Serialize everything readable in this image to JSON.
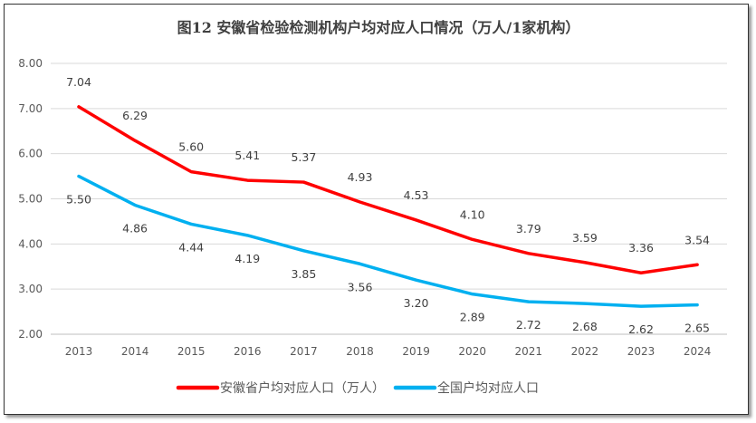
{
  "chart_data": {
    "type": "line",
    "title": "图12 安徽省检验检测机构户均对应人口情况（万人/1家机构）",
    "categories": [
      "2013",
      "2014",
      "2015",
      "2016",
      "2017",
      "2018",
      "2019",
      "2020",
      "2021",
      "2022",
      "2023",
      "2024"
    ],
    "ylim": [
      2.0,
      8.0
    ],
    "yticks": [
      "2.00",
      "3.00",
      "4.00",
      "5.00",
      "6.00",
      "7.00",
      "8.00"
    ],
    "grid": true,
    "legend_position": "bottom",
    "series": [
      {
        "name": "安徽省户均对应人口（万人）",
        "color": "#ff0000",
        "values": [
          7.04,
          6.29,
          5.6,
          5.41,
          5.37,
          4.93,
          4.53,
          4.1,
          3.79,
          3.59,
          3.36,
          3.54
        ]
      },
      {
        "name": "全国户均对应人口",
        "color": "#00b0f0",
        "values": [
          5.5,
          4.86,
          4.44,
          4.19,
          3.85,
          3.56,
          3.2,
          2.89,
          2.72,
          2.68,
          2.62,
          2.65
        ]
      }
    ]
  }
}
